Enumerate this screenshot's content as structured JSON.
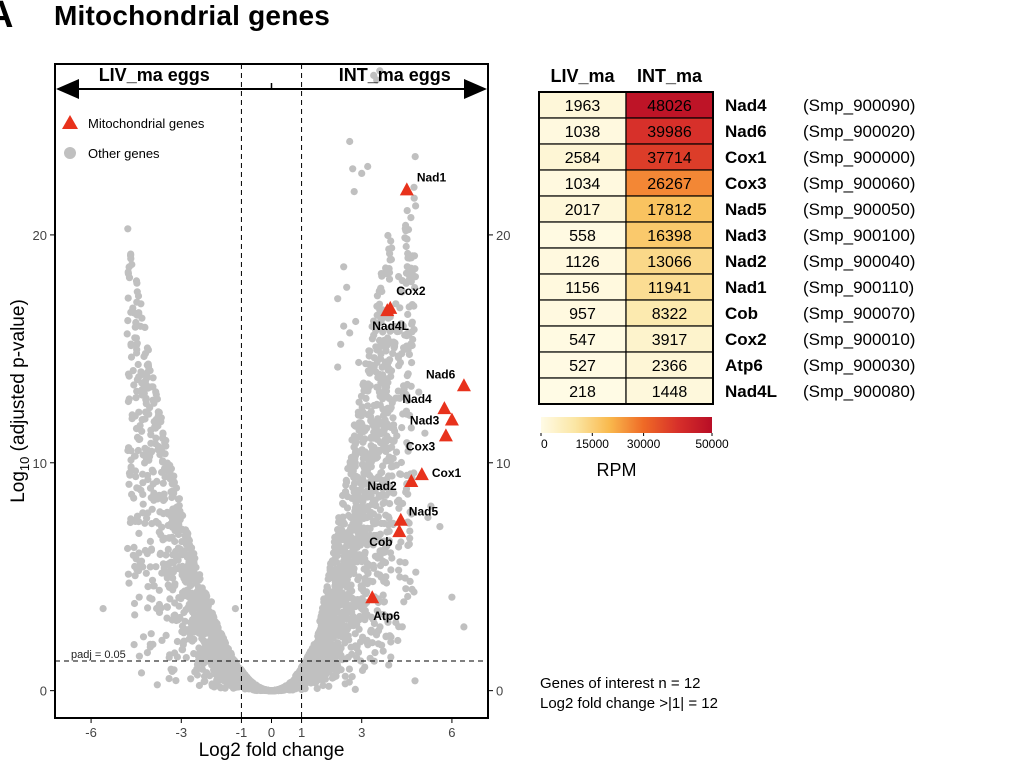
{
  "figure": {
    "panel_letter": "A",
    "title": "Mitochondrial genes"
  },
  "chart_data": [
    {
      "type": "scatter",
      "name": "volcano",
      "xlabel": "Log2 fold change",
      "ylabel": "Log10 (adjusted p-value)",
      "xlim": [
        -7.2,
        7.2
      ],
      "ylim": [
        -1.2,
        27.5
      ],
      "x_ticks": [
        -6,
        -3,
        -1,
        0,
        1,
        3,
        6
      ],
      "y_ticks": [
        0,
        10,
        20
      ],
      "vlines": [
        -1,
        1
      ],
      "hline": {
        "y": 1.301,
        "label": "padj = 0.05"
      },
      "arrow_labels": {
        "left": "LIV_ma eggs",
        "right": "INT_ma eggs"
      },
      "legend": {
        "position": "top-left",
        "items": [
          {
            "label": "Mitochondrial genes",
            "shape": "triangle",
            "color": "#e8321c"
          },
          {
            "label": "Other genes",
            "shape": "circle",
            "color": "#c0c0c0"
          }
        ]
      },
      "series": [
        {
          "name": "Mitochondrial genes",
          "color": "#e8321c",
          "points": [
            {
              "label": "Nad1",
              "x": 4.5,
              "y": 22.0
            },
            {
              "label": "Cox2",
              "x": 3.95,
              "y": 16.8
            },
            {
              "label": "Nad4L",
              "x": 3.85,
              "y": 16.7
            },
            {
              "label": "Nad6",
              "x": 6.4,
              "y": 13.4
            },
            {
              "label": "Nad4",
              "x": 5.75,
              "y": 12.4
            },
            {
              "label": "Nad3",
              "x": 6.0,
              "y": 11.9
            },
            {
              "label": "Cox3",
              "x": 5.8,
              "y": 11.2
            },
            {
              "label": "Cox1",
              "x": 5.0,
              "y": 9.5
            },
            {
              "label": "Nad2",
              "x": 4.65,
              "y": 9.2
            },
            {
              "label": "Nad5",
              "x": 4.3,
              "y": 7.5
            },
            {
              "label": "Cob",
              "x": 4.25,
              "y": 7.0
            },
            {
              "label": "Atp6",
              "x": 3.35,
              "y": 4.1
            }
          ]
        },
        {
          "name": "Other genes",
          "color": "#c0c0c0",
          "points": [
            {
              "x": 3.4,
              "y": 27.0
            },
            {
              "x": 3.6,
              "y": 27.2
            },
            {
              "x": 3.5,
              "y": 26.8
            },
            {
              "x": 2.6,
              "y": 24.1
            },
            {
              "x": 2.7,
              "y": 22.9
            },
            {
              "x": 3.2,
              "y": 23.0
            },
            {
              "x": 3.0,
              "y": 22.7
            },
            {
              "x": 2.75,
              "y": 21.9
            },
            {
              "x": 2.4,
              "y": 18.6
            },
            {
              "x": 2.5,
              "y": 17.7
            },
            {
              "x": 2.2,
              "y": 17.2
            },
            {
              "x": 2.8,
              "y": 16.2
            },
            {
              "x": 2.4,
              "y": 16.0
            },
            {
              "x": 3.4,
              "y": 15.6
            },
            {
              "x": 3.6,
              "y": 16.7
            },
            {
              "x": 2.3,
              "y": 15.2
            },
            {
              "x": 2.6,
              "y": 15.7
            },
            {
              "x": 2.2,
              "y": 14.2
            },
            {
              "x": 2.9,
              "y": 14.4
            },
            {
              "x": 4.9,
              "y": 13.1
            },
            {
              "x": 3.2,
              "y": 12.5
            },
            {
              "x": 2.8,
              "y": 11.6
            },
            {
              "x": 5.1,
              "y": 11.3
            },
            {
              "x": 3.8,
              "y": 10.5
            },
            {
              "x": 3.5,
              "y": 9.3
            },
            {
              "x": 5.3,
              "y": 8.1
            },
            {
              "x": 5.2,
              "y": 7.6
            },
            {
              "x": 5.6,
              "y": 7.2
            },
            {
              "x": 4.6,
              "y": 7.0
            },
            {
              "x": 3.1,
              "y": 6.0
            },
            {
              "x": 4.8,
              "y": 5.2
            },
            {
              "x": 3.8,
              "y": 5.0
            },
            {
              "x": 4.4,
              "y": 3.9
            },
            {
              "x": 6.0,
              "y": 4.1
            },
            {
              "x": 6.4,
              "y": 2.8
            },
            {
              "x": 3.3,
              "y": 2.6
            },
            {
              "x": 4.2,
              "y": 2.2
            },
            {
              "x": -3.6,
              "y": 9.1
            },
            {
              "x": -2.8,
              "y": 6.6
            },
            {
              "x": -5.6,
              "y": 3.6
            },
            {
              "x": -3.9,
              "y": 4.6
            },
            {
              "x": -4.4,
              "y": 4.1
            },
            {
              "x": -2.1,
              "y": 3.0
            },
            {
              "x": -1.6,
              "y": 2.3
            },
            {
              "x": -2.6,
              "y": 2.8
            },
            {
              "x": -3.3,
              "y": 3.1
            },
            {
              "x": -1.2,
              "y": 3.6
            },
            {
              "x": -2.0,
              "y": 3.9
            },
            {
              "x": -2.4,
              "y": 4.3
            },
            {
              "x": -4.0,
              "y": 2.5
            }
          ]
        }
      ]
    },
    {
      "type": "heatmap",
      "name": "mitochondrial-rpm",
      "columns": [
        "LIV_ma",
        "INT_ma"
      ],
      "rows": [
        {
          "gene": "Nad4",
          "id": "(Smp_900090)",
          "values": [
            1963,
            48026
          ]
        },
        {
          "gene": "Nad6",
          "id": "(Smp_900020)",
          "values": [
            1038,
            39986
          ]
        },
        {
          "gene": "Cox1",
          "id": "(Smp_900000)",
          "values": [
            2584,
            37714
          ]
        },
        {
          "gene": "Cox3",
          "id": "(Smp_900060)",
          "values": [
            1034,
            26267
          ]
        },
        {
          "gene": "Nad5",
          "id": "(Smp_900050)",
          "values": [
            2017,
            17812
          ]
        },
        {
          "gene": "Nad3",
          "id": "(Smp_900100)",
          "values": [
            558,
            16398
          ]
        },
        {
          "gene": "Nad2",
          "id": "(Smp_900040)",
          "values": [
            1126,
            13066
          ]
        },
        {
          "gene": "Nad1",
          "id": "(Smp_900110)",
          "values": [
            1156,
            11941
          ]
        },
        {
          "gene": "Cob",
          "id": "(Smp_900070)",
          "values": [
            957,
            8322
          ]
        },
        {
          "gene": "Cox2",
          "id": "(Smp_900010)",
          "values": [
            547,
            3917
          ]
        },
        {
          "gene": "Atp6",
          "id": "(Smp_900030)",
          "values": [
            527,
            2366
          ]
        },
        {
          "gene": "Nad4L",
          "id": "(Smp_900080)",
          "values": [
            218,
            1448
          ]
        }
      ],
      "colorscale": {
        "label": "RPM",
        "range": [
          0,
          50000
        ],
        "ticks": [
          0,
          15000,
          30000,
          50000
        ],
        "colors": [
          "#fffbe6",
          "#fbe6a4",
          "#f9b94d",
          "#ef6a26",
          "#d7302a",
          "#b80d26"
        ]
      }
    }
  ],
  "stats": {
    "line1": "Genes of interest n = 12",
    "line2": "Log2 fold change >|1| = 12"
  }
}
